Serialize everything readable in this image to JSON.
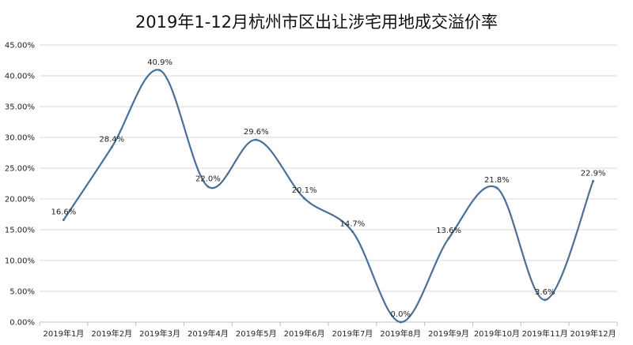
{
  "chart_data": {
    "type": "line",
    "title": "2019年1-12月杭州市区出让涉宅用地成交溢价率",
    "xlabel": "",
    "ylabel": "",
    "categories": [
      "2019年1月",
      "2019年2月",
      "2019年3月",
      "2019年4月",
      "2019年5月",
      "2019年6月",
      "2019年7月",
      "2019年8月",
      "2019年9月",
      "2019年10月",
      "2019年11月",
      "2019年12月"
    ],
    "series": [
      {
        "values": [
          16.6,
          28.4,
          40.9,
          22.0,
          29.6,
          20.1,
          14.7,
          0.0,
          13.6,
          21.8,
          3.6,
          22.9
        ],
        "labels": [
          "16.6%",
          "28.4%",
          "40.9%",
          "22.0%",
          "29.6%",
          "20.1%",
          "14.7%",
          "0.0%",
          "13.6%",
          "21.8%",
          "3.6%",
          "22.9%"
        ]
      }
    ],
    "yticks": [
      "0.00%",
      "5.00%",
      "10.00%",
      "15.00%",
      "20.00%",
      "25.00%",
      "30.00%",
      "35.00%",
      "40.00%",
      "45.00%"
    ],
    "ylim": [
      0,
      45
    ],
    "grid": true,
    "smooth": true,
    "line_color": "#4a6f97"
  }
}
